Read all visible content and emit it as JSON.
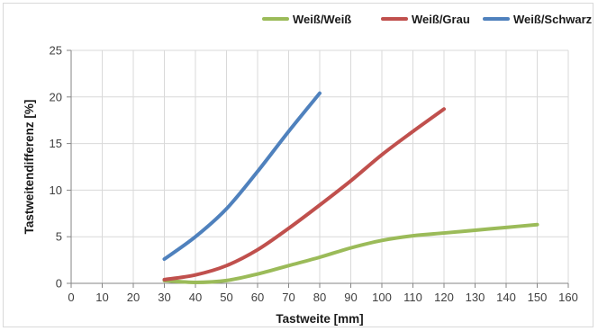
{
  "chart_data": {
    "type": "line",
    "title": "",
    "xlabel": "Tastweite [mm]",
    "ylabel": "Tastweitendifferenz [%]",
    "xlim": [
      0,
      160
    ],
    "ylim": [
      0,
      25
    ],
    "xticks": [
      0,
      10,
      20,
      30,
      40,
      50,
      60,
      70,
      80,
      90,
      100,
      110,
      120,
      130,
      140,
      150,
      160
    ],
    "yticks": [
      0,
      5,
      10,
      15,
      20,
      25
    ],
    "grid": true,
    "legend": "top-right",
    "series": [
      {
        "name": "Weiß/Weiß",
        "color": "#9bbb59",
        "points": [
          [
            30,
            0.3
          ],
          [
            40,
            0.1
          ],
          [
            50,
            0.3
          ],
          [
            60,
            1.0
          ],
          [
            70,
            1.9
          ],
          [
            80,
            2.8
          ],
          [
            90,
            3.8
          ],
          [
            100,
            4.6
          ],
          [
            110,
            5.1
          ],
          [
            120,
            5.4
          ],
          [
            130,
            5.7
          ],
          [
            140,
            6.0
          ],
          [
            150,
            6.3
          ]
        ]
      },
      {
        "name": "Weiß/Grau",
        "color": "#c0504d",
        "points": [
          [
            30,
            0.4
          ],
          [
            40,
            0.9
          ],
          [
            50,
            1.9
          ],
          [
            60,
            3.6
          ],
          [
            70,
            5.9
          ],
          [
            80,
            8.4
          ],
          [
            90,
            11.0
          ],
          [
            100,
            13.8
          ],
          [
            110,
            16.3
          ],
          [
            120,
            18.7
          ]
        ]
      },
      {
        "name": "Weiß/Schwarz",
        "color": "#4f81bd",
        "points": [
          [
            30,
            2.6
          ],
          [
            40,
            5.0
          ],
          [
            50,
            8.0
          ],
          [
            60,
            12.0
          ],
          [
            70,
            16.3
          ],
          [
            80,
            20.4
          ]
        ]
      }
    ]
  }
}
